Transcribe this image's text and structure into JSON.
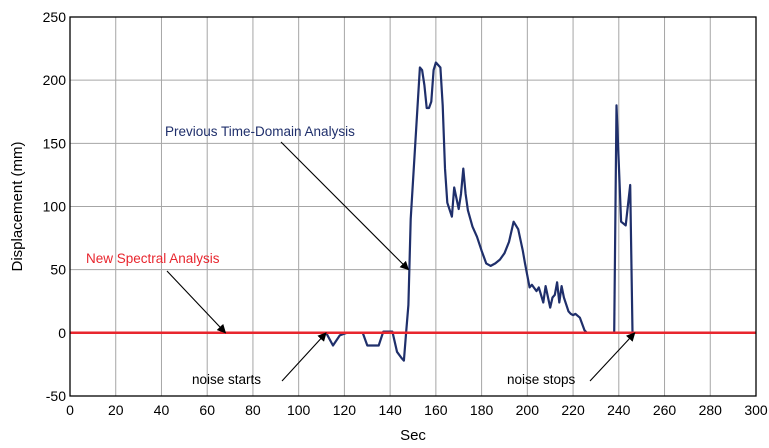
{
  "chart_data": {
    "type": "line",
    "title": "",
    "xlabel": "Sec",
    "ylabel": "Displacement (mm)",
    "xlim": [
      0,
      300
    ],
    "ylim": [
      -50,
      250
    ],
    "xticks": [
      0,
      20,
      40,
      60,
      80,
      100,
      120,
      140,
      160,
      180,
      200,
      220,
      240,
      260,
      280,
      300
    ],
    "yticks": [
      -50,
      0,
      50,
      100,
      150,
      200,
      250
    ],
    "grid": true,
    "series": [
      {
        "name": "Previous Time-Domain Analysis",
        "color": "#1f2f6b",
        "x": [
          0,
          110,
          112,
          115,
          118,
          121,
          128,
          130,
          133,
          135,
          137,
          141,
          143,
          145,
          146,
          147,
          148,
          149,
          151,
          153,
          154,
          155,
          156,
          157,
          158,
          159,
          160,
          162,
          163,
          164,
          165,
          167,
          168,
          170,
          171,
          172,
          173,
          174,
          176,
          178,
          180,
          182,
          184,
          186,
          188,
          190,
          192,
          194,
          196,
          198,
          199,
          201,
          202,
          204,
          205,
          207,
          208,
          210,
          211,
          212,
          213,
          214,
          215,
          216,
          218,
          219,
          220,
          221,
          223,
          225,
          226,
          227,
          228,
          238,
          239,
          241,
          243,
          245,
          246,
          247,
          300
        ],
        "y": [
          0,
          0,
          0,
          -10,
          -2,
          0,
          0,
          -10,
          -10,
          -10,
          1,
          1,
          -15,
          -20,
          -22,
          0,
          22,
          90,
          150,
          210,
          208,
          196,
          178,
          178,
          183,
          208,
          214,
          210,
          180,
          130,
          103,
          92,
          115,
          98,
          110,
          130,
          110,
          97,
          84,
          76,
          65,
          55,
          53,
          55,
          58,
          63,
          72,
          88,
          82,
          65,
          55,
          36,
          38,
          33,
          36,
          24,
          37,
          20,
          28,
          30,
          40,
          24,
          37,
          28,
          17,
          15,
          14,
          15,
          12,
          2,
          0,
          0,
          0,
          0,
          180,
          88,
          85,
          117,
          0,
          0,
          0
        ]
      },
      {
        "name": "New Spectral Analysis",
        "color": "#e8262e",
        "x": [
          0,
          300
        ],
        "y": [
          0,
          0
        ]
      }
    ],
    "annotations": [
      {
        "text": "Previous Time-Domain Analysis",
        "color": "#1f2f6b",
        "target": [
          148,
          50
        ]
      },
      {
        "text": "New Spectral Analysis",
        "color": "#e8262e",
        "target": [
          68,
          0
        ]
      },
      {
        "text": "noise starts",
        "color": "#000000",
        "target": [
          112,
          0
        ]
      },
      {
        "text": "noise stops",
        "color": "#000000",
        "target": [
          247,
          0
        ]
      }
    ]
  }
}
